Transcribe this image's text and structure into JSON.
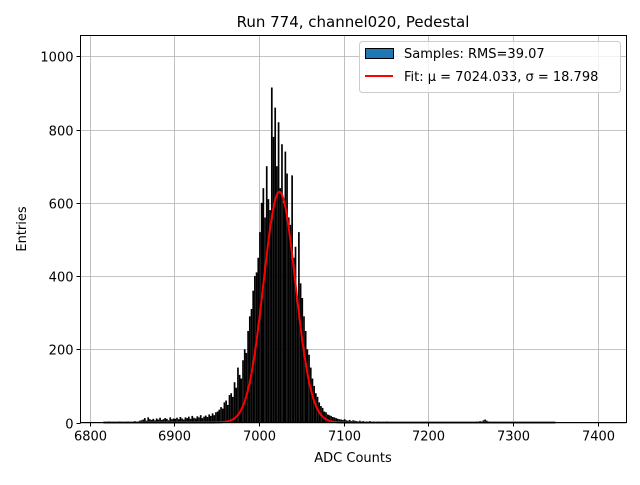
{
  "chart_data": {
    "type": "bar",
    "title": "Run 774, channel020, Pedestal",
    "xlabel": "ADC Counts",
    "ylabel": "Entries",
    "xlim": [
      6789,
      7434
    ],
    "ylim": [
      0,
      1057
    ],
    "xticks": [
      6800,
      6900,
      7000,
      7100,
      7200,
      7300,
      7400
    ],
    "yticks": [
      0,
      200,
      400,
      600,
      800,
      1000
    ],
    "grid": true,
    "legend_position": "top-right",
    "histogram": {
      "name": "Samples: RMS=39.07",
      "color": "#1f77b4",
      "bar_color": "#000000",
      "bin_start": 6816,
      "bin_width": 2,
      "counts": [
        2,
        0,
        1,
        3,
        0,
        2,
        1,
        0,
        2,
        3,
        1,
        0,
        2,
        1,
        3,
        2,
        0,
        1,
        4,
        2,
        3,
        5,
        6,
        8,
        12,
        5,
        14,
        9,
        7,
        10,
        6,
        11,
        8,
        13,
        7,
        9,
        12,
        10,
        6,
        14,
        9,
        11,
        10,
        13,
        9,
        15,
        11,
        8,
        14,
        12,
        16,
        10,
        18,
        13,
        11,
        17,
        14,
        20,
        12,
        16,
        19,
        15,
        22,
        18,
        25,
        20,
        28,
        30,
        35,
        42,
        38,
        55,
        60,
        48,
        75,
        80,
        70,
        110,
        95,
        150,
        130,
        120,
        170,
        200,
        190,
        250,
        290,
        310,
        360,
        400,
        410,
        450,
        520,
        600,
        640,
        560,
        700,
        610,
        580,
        915,
        780,
        860,
        700,
        820,
        640,
        760,
        600,
        740,
        680,
        560,
        540,
        675,
        450,
        480,
        330,
        520,
        380,
        340,
        290,
        250,
        200,
        185,
        150,
        120,
        100,
        80,
        70,
        55,
        45,
        40,
        30,
        28,
        22,
        20,
        18,
        15,
        14,
        12,
        10,
        9,
        8,
        7,
        9,
        6,
        5,
        7,
        4,
        6,
        5,
        4,
        3,
        5,
        3,
        4,
        2,
        3,
        1,
        4,
        2,
        3,
        2,
        1,
        3,
        2,
        0,
        2,
        1,
        3,
        2,
        1,
        0,
        2,
        1,
        2,
        0,
        1,
        2,
        1,
        0,
        1,
        2,
        0,
        1,
        1,
        0,
        2,
        1,
        0,
        1,
        0,
        1,
        0,
        0,
        1,
        0,
        1,
        0,
        0,
        1,
        0,
        1,
        0,
        0,
        1,
        0,
        0,
        1,
        0,
        0,
        1,
        0,
        0,
        0,
        1,
        0,
        0,
        1,
        0,
        2,
        1,
        3,
        2,
        4,
        3,
        6,
        8,
        5,
        3,
        2,
        1,
        0,
        1,
        0,
        1,
        2,
        0,
        1,
        0,
        1,
        2,
        1,
        0,
        0,
        1,
        0,
        1,
        0,
        0,
        1,
        0,
        0,
        1,
        0,
        1,
        0,
        0,
        1,
        0,
        0,
        1,
        0,
        0,
        1,
        0,
        0,
        1,
        0
      ]
    },
    "fit": {
      "name": "Fit: μ = 7024.033, σ = 18.798",
      "mu": 7024.033,
      "sigma": 18.798,
      "amplitude": 630,
      "x_range": [
        6816,
        7350
      ],
      "color": "#ff0000"
    }
  }
}
